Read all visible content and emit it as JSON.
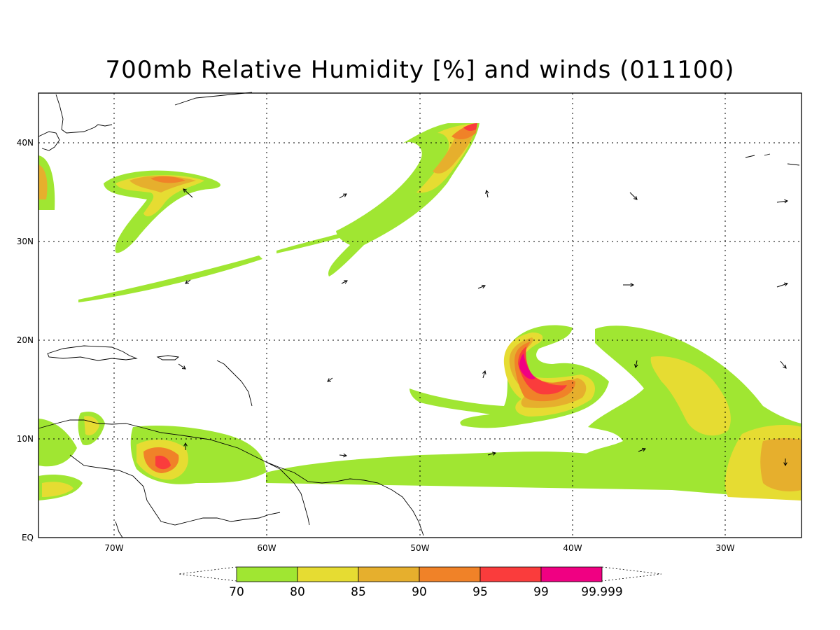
{
  "title": "700mb Relative Humidity [%] and winds (011100)",
  "lat_ticks": [
    "40N",
    "30N",
    "20N",
    "10N",
    "EQ"
  ],
  "lon_ticks": [
    "70W",
    "60W",
    "50W",
    "40W",
    "30W"
  ],
  "colorbar": {
    "labels": [
      "70",
      "80",
      "85",
      "90",
      "95",
      "99",
      "99.999"
    ],
    "colors": [
      "#a0e632",
      "#e6dc32",
      "#e6af2d",
      "#f08228",
      "#fa3c3c",
      "#f00082"
    ]
  },
  "map_extent": {
    "lon": [
      -75,
      -25
    ],
    "lat": [
      0,
      45
    ]
  },
  "grid": true
}
